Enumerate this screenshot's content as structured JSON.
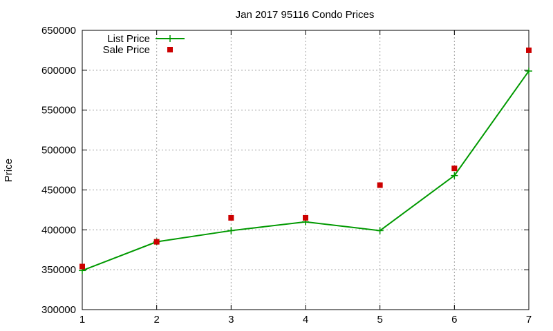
{
  "chart_data": {
    "type": "line",
    "title": "Jan 2017 95116 Condo Prices",
    "xlabel": "",
    "ylabel": "Price",
    "xlim": [
      1,
      7
    ],
    "ylim": [
      300000,
      650000
    ],
    "x_ticks": [
      1,
      2,
      3,
      4,
      5,
      6,
      7
    ],
    "y_ticks": [
      300000,
      350000,
      400000,
      450000,
      500000,
      550000,
      600000,
      650000
    ],
    "grid": true,
    "legend_position": "top-left",
    "series": [
      {
        "name": "List Price",
        "style": "line-with-plus-markers",
        "color": "#009900",
        "x": [
          1,
          2,
          3,
          4,
          5,
          6,
          7
        ],
        "y": [
          349000,
          385000,
          399000,
          410000,
          399000,
          468000,
          599000
        ]
      },
      {
        "name": "Sale Price",
        "style": "square-points",
        "color": "#cc0000",
        "x": [
          1,
          2,
          3,
          4,
          5,
          6,
          7
        ],
        "y": [
          354000,
          385000,
          415000,
          415000,
          456000,
          477000,
          625000
        ]
      }
    ]
  }
}
